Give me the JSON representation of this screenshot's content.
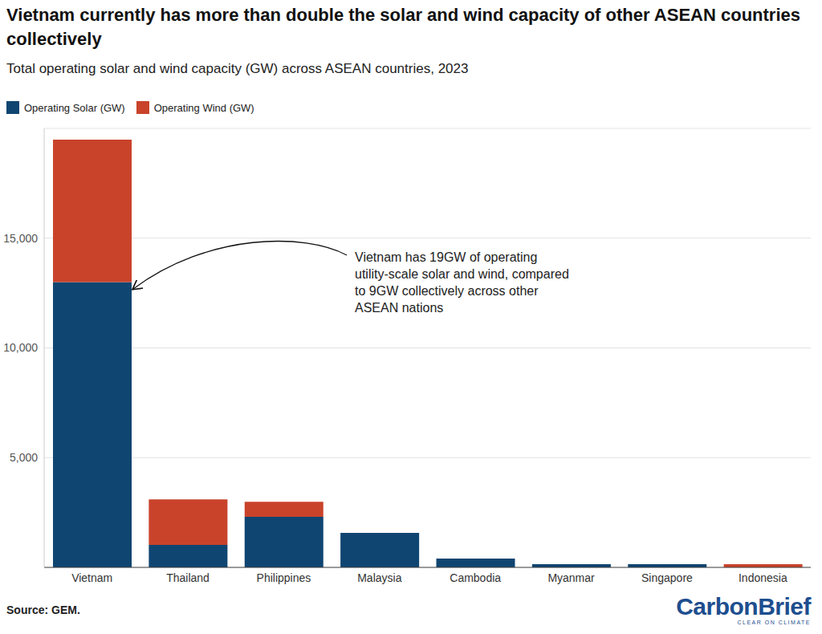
{
  "chart_data": {
    "type": "bar",
    "title": "Vietnam currently has more than double the solar and wind capacity of other ASEAN countries collectively",
    "subtitle": "Total operating solar and wind capacity (GW) across ASEAN countries, 2023",
    "categories": [
      "Vietnam",
      "Thailand",
      "Philippines",
      "Malaysia",
      "Cambodia",
      "Myanmar",
      "Singapore",
      "Indonesia"
    ],
    "series": [
      {
        "name": "Operating Solar (GW)",
        "color": "#0f4571",
        "values": [
          13000,
          1020,
          2300,
          1570,
          400,
          150,
          150,
          0
        ]
      },
      {
        "name": "Operating Wind (GW)",
        "color": "#c9432b",
        "values": [
          6490,
          2080,
          690,
          0,
          0,
          0,
          0,
          150
        ]
      }
    ],
    "ylim": [
      0,
      20000
    ],
    "yticks": [
      {
        "value": 5000,
        "label": "5,000"
      },
      {
        "value": 10000,
        "label": "10,000"
      },
      {
        "value": 15000,
        "label": "15,000"
      }
    ],
    "stacked": true,
    "grid": true,
    "legend": "top-left",
    "annotations": [
      "Vietnam has 19GW of operating utility-scale solar and wind, compared to 9GW collectively across other ASEAN nations"
    ],
    "source": "Source: GEM.",
    "logo": "CarbonBrief",
    "logo_tagline": "CLEAR ON CLIMATE"
  }
}
